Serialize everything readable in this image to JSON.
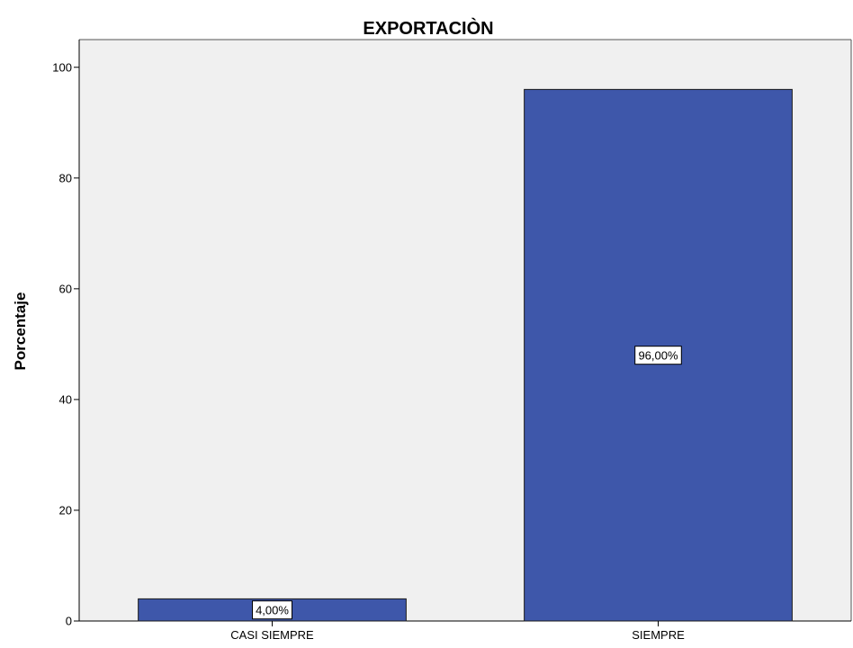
{
  "chart_data": {
    "type": "bar",
    "title": "EXPORTACIÒN",
    "xlabel": "",
    "ylabel": "Porcentaje",
    "categories": [
      "CASI SIEMPRE",
      "SIEMPRE"
    ],
    "values": [
      4.0,
      96.0
    ],
    "data_labels": [
      "4,00%",
      "96,00%"
    ],
    "ylim": [
      0,
      105
    ],
    "yticks": [
      0,
      20,
      40,
      60,
      80,
      100
    ],
    "ytick_labels": [
      "0",
      "20",
      "40",
      "60",
      "80",
      "100"
    ],
    "grid": false,
    "legend": "none",
    "colors": {
      "bar_fill": "#3e57aa",
      "bar_stroke": "#1a1a1a",
      "plot_background": "#f0f0f0",
      "label_box_fill": "#ffffff"
    }
  }
}
